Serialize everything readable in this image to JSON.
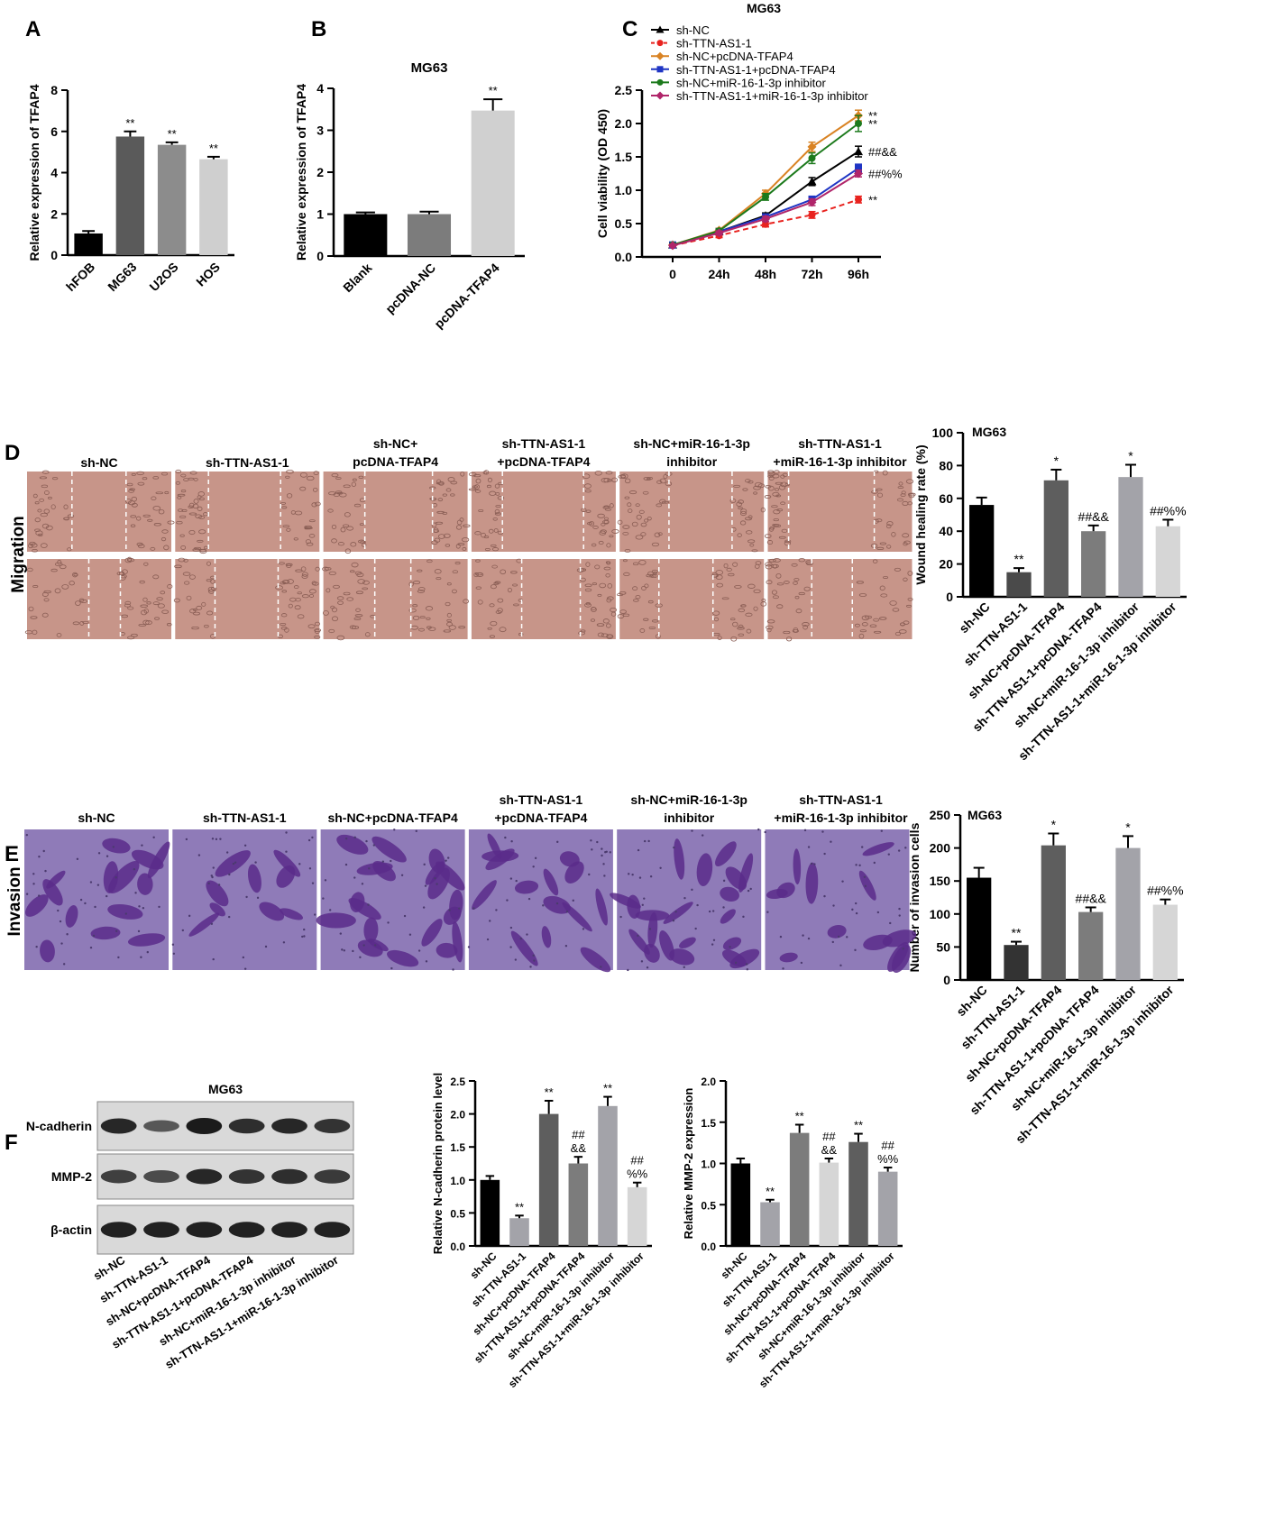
{
  "panel_labels": [
    "A",
    "B",
    "C",
    "D",
    "E",
    "F"
  ],
  "colors": {
    "black": "#000000",
    "dark_gray": "#5a5a5a",
    "mid_gray": "#8c8c8c",
    "light_gray": "#cfcfcf",
    "migration_bg": "#c79589",
    "invasion_bg": "#8f7bb8",
    "invasion_cell": "#5b2c8a"
  },
  "chart_data": [
    {
      "id": "A",
      "type": "bar",
      "ylabel": "Relative expression of TFAP4",
      "ylim": [
        0,
        8
      ],
      "yticks": [
        0,
        2,
        4,
        6,
        8
      ],
      "categories": [
        "hFOB",
        "MG63",
        "U2OS",
        "HOS"
      ],
      "values": [
        1.05,
        5.75,
        5.35,
        4.65
      ],
      "errors": [
        0.12,
        0.25,
        0.12,
        0.12
      ],
      "annotations": [
        "",
        "**",
        "**",
        "**"
      ],
      "colors": [
        "#000000",
        "#5a5a5a",
        "#8c8c8c",
        "#cfcfcf"
      ]
    },
    {
      "id": "B",
      "type": "bar",
      "title": "MG63",
      "ylabel": "Relative expression of TFAP4",
      "ylim": [
        0,
        4
      ],
      "yticks": [
        0,
        1,
        2,
        3,
        4
      ],
      "categories": [
        "Blank",
        "pcDNA-NC",
        "pcDNA-TFAP4"
      ],
      "values": [
        1.0,
        1.0,
        3.47
      ],
      "errors": [
        0.04,
        0.06,
        0.27
      ],
      "annotations": [
        "",
        "",
        "**"
      ],
      "colors": [
        "#000000",
        "#7c7c7c",
        "#d0d0d0"
      ]
    },
    {
      "id": "C",
      "type": "line",
      "title": "MG63",
      "ylabel": "Cell viability (OD 450)",
      "ylim": [
        0,
        2.5
      ],
      "yticks": [
        0.0,
        0.5,
        1.0,
        1.5,
        2.0,
        2.5
      ],
      "ytick_labels": [
        "0.0",
        "0.5",
        "1.0",
        "1.5",
        "2.0",
        "2.5"
      ],
      "x": [
        "0",
        "24h",
        "48h",
        "72h",
        "96h"
      ],
      "series": [
        {
          "name": "sh-NC",
          "color": "#000000",
          "marker": "triangle",
          "dashed": false,
          "values": [
            0.18,
            0.38,
            0.62,
            1.13,
            1.58
          ],
          "errors": [
            0.02,
            0.03,
            0.04,
            0.06,
            0.08
          ],
          "end_label": "##&&"
        },
        {
          "name": "sh-TTN-AS1-1",
          "color": "#e8231f",
          "marker": "circle",
          "dashed": true,
          "values": [
            0.17,
            0.32,
            0.49,
            0.63,
            0.86
          ],
          "errors": [
            0.02,
            0.03,
            0.04,
            0.05,
            0.05
          ],
          "end_label": "**"
        },
        {
          "name": "sh-NC+pcDNA-TFAP4",
          "color": "#d98324",
          "marker": "diamond",
          "dashed": false,
          "values": [
            0.18,
            0.4,
            0.95,
            1.65,
            2.12
          ],
          "errors": [
            0.02,
            0.03,
            0.05,
            0.07,
            0.08
          ],
          "end_label": "**"
        },
        {
          "name": "sh-TTN-AS1-1+pcDNA-TFAP4",
          "color": "#1f35c4",
          "marker": "square",
          "dashed": false,
          "values": [
            0.18,
            0.38,
            0.6,
            0.86,
            1.33
          ],
          "errors": [
            0.02,
            0.03,
            0.04,
            0.05,
            0.06
          ],
          "end_label": ""
        },
        {
          "name": "sh-NC+miR-16-1-3p inhibitor",
          "color": "#1c7a1c",
          "marker": "circle",
          "dashed": false,
          "values": [
            0.18,
            0.39,
            0.9,
            1.48,
            2.0
          ],
          "errors": [
            0.02,
            0.03,
            0.05,
            0.08,
            0.12
          ],
          "end_label": "**"
        },
        {
          "name": "sh-TTN-AS1-1+miR-16-1-3p inhibitor",
          "color": "#b0256a",
          "marker": "diamond",
          "dashed": false,
          "values": [
            0.17,
            0.36,
            0.57,
            0.82,
            1.25
          ],
          "errors": [
            0.02,
            0.03,
            0.04,
            0.05,
            0.05
          ],
          "end_label": "##%%"
        }
      ]
    },
    {
      "id": "D",
      "type": "bar",
      "title": "MG63",
      "ylabel": "Wound healing rate (%)",
      "ylim": [
        0,
        100
      ],
      "yticks": [
        0,
        20,
        40,
        60,
        80,
        100
      ],
      "categories": [
        "sh-NC",
        "sh-TTN-AS1-1",
        "sh-NC+pcDNA-TFAP4",
        "sh-TTN-AS1-1+pcDNA-TFAP4",
        "sh-NC+miR-16-1-3p inhibitor",
        "sh-TTN-AS1-1+miR-16-1-3p inhibitor"
      ],
      "values": [
        56,
        15,
        71,
        40,
        73,
        43
      ],
      "errors": [
        4.5,
        2.5,
        6.5,
        3.5,
        7.5,
        4.0
      ],
      "annotations": [
        "",
        "**",
        "*",
        "##&&",
        "*",
        "##%%"
      ],
      "colors": [
        "#000000",
        "#4a4a4a",
        "#5e5e5e",
        "#7c7c7c",
        "#a3a3a9",
        "#d6d6d6"
      ]
    },
    {
      "id": "E",
      "type": "bar",
      "title": "MG63",
      "ylabel": "Number of invasion cells",
      "ylim": [
        0,
        250
      ],
      "yticks": [
        0,
        50,
        100,
        150,
        200,
        250
      ],
      "categories": [
        "sh-NC",
        "sh-TTN-AS1-1",
        "sh-NC+pcDNA-TFAP4",
        "sh-TTN-AS1-1+pcDNA-TFAP4",
        "sh-NC+miR-16-1-3p inhibitor",
        "sh-TTN-AS1-1+miR-16-1-3p inhibitor"
      ],
      "values": [
        155,
        53,
        204,
        103,
        200,
        114
      ],
      "errors": [
        15,
        5,
        18,
        7,
        18,
        8
      ],
      "annotations": [
        "",
        "**",
        "*",
        "##&&",
        "*",
        "##%%"
      ],
      "colors": [
        "#000000",
        "#333333",
        "#5e5e5e",
        "#7c7c7c",
        "#a3a3a9",
        "#d6d6d6"
      ]
    },
    {
      "id": "F1",
      "type": "bar",
      "ylabel": "Relative N-cadherin protein level",
      "ylim": [
        0,
        2.5
      ],
      "yticks": [
        0.0,
        0.5,
        1.0,
        1.5,
        2.0,
        2.5
      ],
      "ytick_labels": [
        "0.0",
        "0.5",
        "1.0",
        "1.5",
        "2.0",
        "2.5"
      ],
      "categories": [
        "sh-NC",
        "sh-TTN-AS1-1",
        "sh-NC+pcDNA-TFAP4",
        "sh-TTN-AS1-1+pcDNA-TFAP4",
        "sh-NC+miR-16-1-3p inhibitor",
        "sh-TTN-AS1-1+miR-16-1-3p inhibitor"
      ],
      "values": [
        1.0,
        0.42,
        2.0,
        1.25,
        2.12,
        0.89
      ],
      "errors": [
        0.06,
        0.04,
        0.2,
        0.1,
        0.14,
        0.07
      ],
      "annotations": [
        [
          ""
        ],
        [
          "**"
        ],
        [
          "**"
        ],
        [
          "##",
          "&&"
        ],
        [
          "**"
        ],
        [
          "##",
          "%%"
        ]
      ],
      "colors": [
        "#000000",
        "#a3a3a9",
        "#5e5e5e",
        "#7c7c7c",
        "#a3a3a9",
        "#d6d6d6"
      ]
    },
    {
      "id": "F2",
      "type": "bar",
      "ylabel": "Relative MMP-2 expression",
      "ylim": [
        0,
        2.0
      ],
      "yticks": [
        0.0,
        0.5,
        1.0,
        1.5,
        2.0
      ],
      "ytick_labels": [
        "0.0",
        "0.5",
        "1.0",
        "1.5",
        "2.0"
      ],
      "categories": [
        "sh-NC",
        "sh-TTN-AS1-1",
        "sh-NC+pcDNA-TFAP4",
        "sh-TTN-AS1-1+pcDNA-TFAP4",
        "sh-NC+miR-16-1-3p inhibitor",
        "sh-TTN-AS1-1+miR-16-1-3p inhibitor"
      ],
      "values": [
        1.0,
        0.53,
        1.37,
        1.01,
        1.26,
        0.9
      ],
      "errors": [
        0.06,
        0.03,
        0.1,
        0.05,
        0.1,
        0.05
      ],
      "annotations": [
        [
          ""
        ],
        [
          "**"
        ],
        [
          "**"
        ],
        [
          "##",
          "&&"
        ],
        [
          "**"
        ],
        [
          "##",
          "%%"
        ]
      ],
      "colors": [
        "#000000",
        "#a3a3a9",
        "#7c7c7c",
        "#d6d6d6",
        "#5e5e5e",
        "#a3a3a9"
      ]
    }
  ],
  "panel_D": {
    "side_label": "Migration",
    "headers": [
      [
        "sh-NC"
      ],
      [
        "sh-TTN-AS1-1"
      ],
      [
        "sh-NC+",
        "pcDNA-TFAP4"
      ],
      [
        "sh-TTN-AS1-1",
        "+pcDNA-TFAP4"
      ],
      [
        "sh-NC+miR-16-1-3p",
        "inhibitor"
      ],
      [
        "sh-TTN-AS1-1",
        "+miR-16-1-3p inhibitor"
      ]
    ]
  },
  "panel_E": {
    "side_label": "Invasion",
    "headers": [
      [
        "sh-NC"
      ],
      [
        "sh-TTN-AS1-1"
      ],
      [
        "sh-NC+pcDNA-TFAP4"
      ],
      [
        "sh-TTN-AS1-1",
        "+pcDNA-TFAP4"
      ],
      [
        "sh-NC+miR-16-1-3p",
        "inhibitor"
      ],
      [
        "sh-TTN-AS1-1",
        "+miR-16-1-3p inhibitor"
      ]
    ]
  },
  "panel_F_blot": {
    "title": "MG63",
    "rows": [
      "N-cadherin",
      "MMP-2",
      "β-actin"
    ],
    "lanes": [
      "sh-NC",
      "sh-TTN-AS1-1",
      "sh-NC+pcDNA-TFAP4",
      "sh-TTN-AS1-1+pcDNA-TFAP4",
      "sh-NC+miR-16-1-3p inhibitor",
      "sh-TTN-AS1-1+miR-16-1-3p inhibitor"
    ],
    "band_intensity": [
      [
        0.9,
        0.5,
        1.0,
        0.85,
        0.9,
        0.8
      ],
      [
        0.7,
        0.6,
        0.9,
        0.8,
        0.85,
        0.75
      ],
      [
        0.95,
        0.95,
        0.95,
        0.95,
        0.95,
        0.95
      ]
    ]
  }
}
